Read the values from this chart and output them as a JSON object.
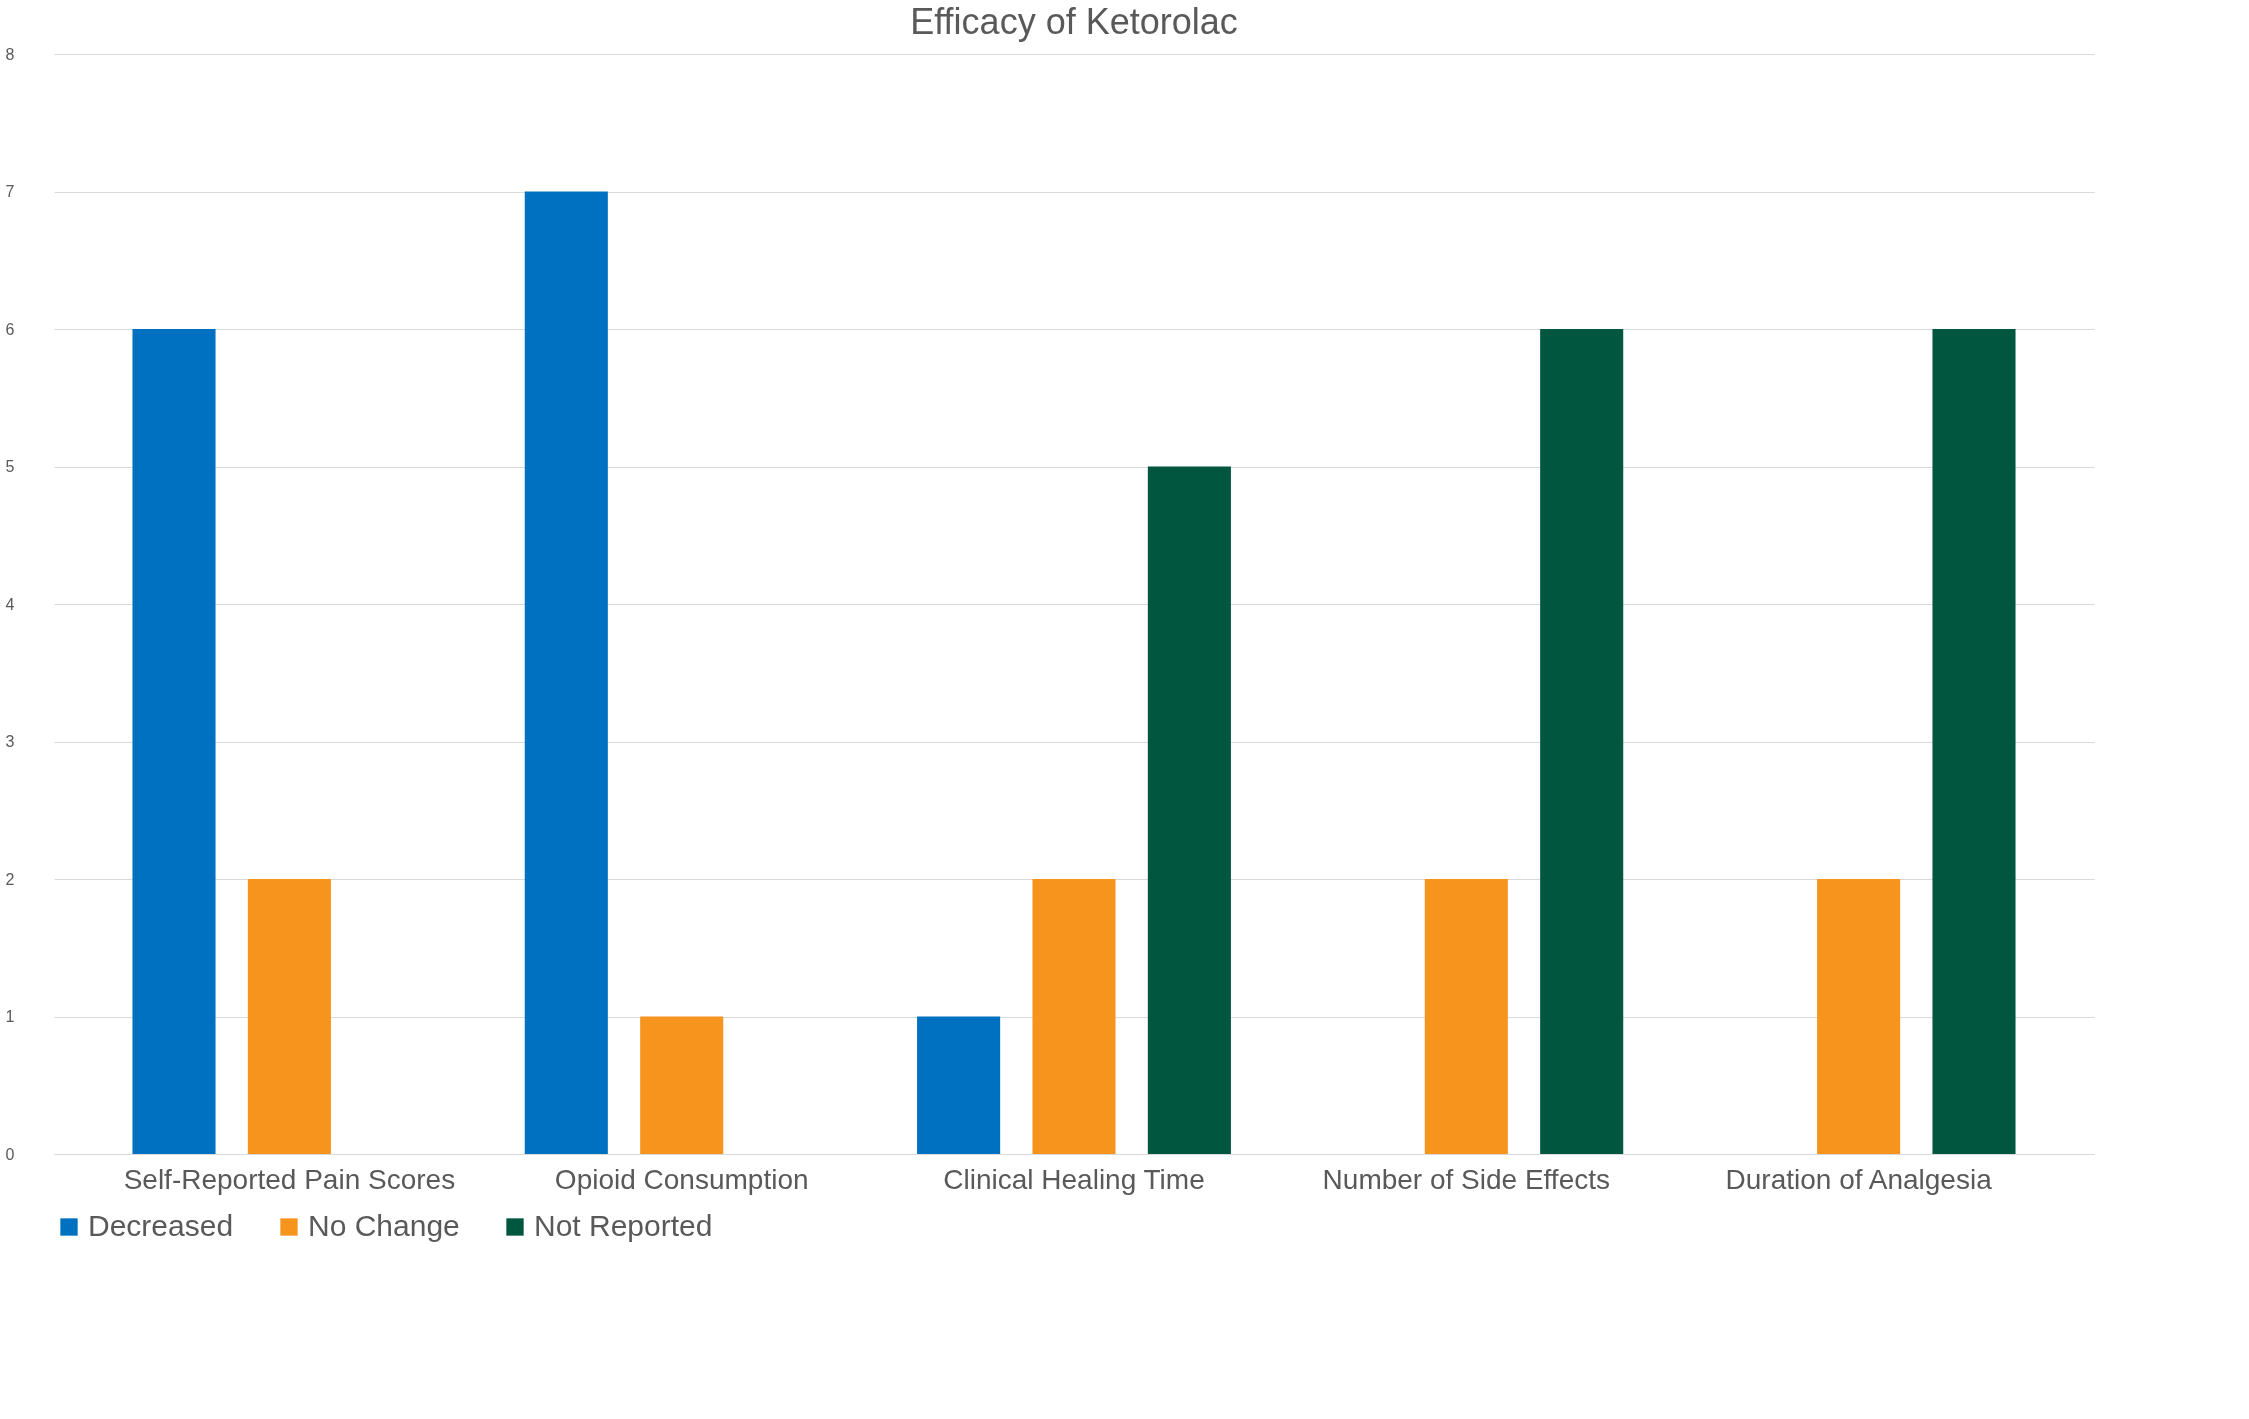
{
  "chart_data": {
    "type": "bar",
    "title": "Efficacy of Ketorolac",
    "categories": [
      "Self-Reported Pain Scores",
      "Opioid Consumption",
      "Clinical Healing Time",
      "Number of Side Effects",
      "Duration of Analgesia"
    ],
    "series": [
      {
        "name": "Decreased",
        "color": "#0070c0",
        "values": [
          6,
          7,
          1,
          0,
          0
        ]
      },
      {
        "name": "No Change",
        "color": "#f7941d",
        "values": [
          2,
          1,
          2,
          2,
          2
        ]
      },
      {
        "name": "Not Reported",
        "color": "#00563f",
        "values": [
          0,
          0,
          5,
          6,
          6
        ]
      }
    ],
    "ylim": [
      0,
      8
    ],
    "yticks": [
      0,
      1,
      2,
      3,
      4,
      5,
      6,
      7,
      8
    ],
    "grid": "y",
    "legend": "bottom"
  }
}
